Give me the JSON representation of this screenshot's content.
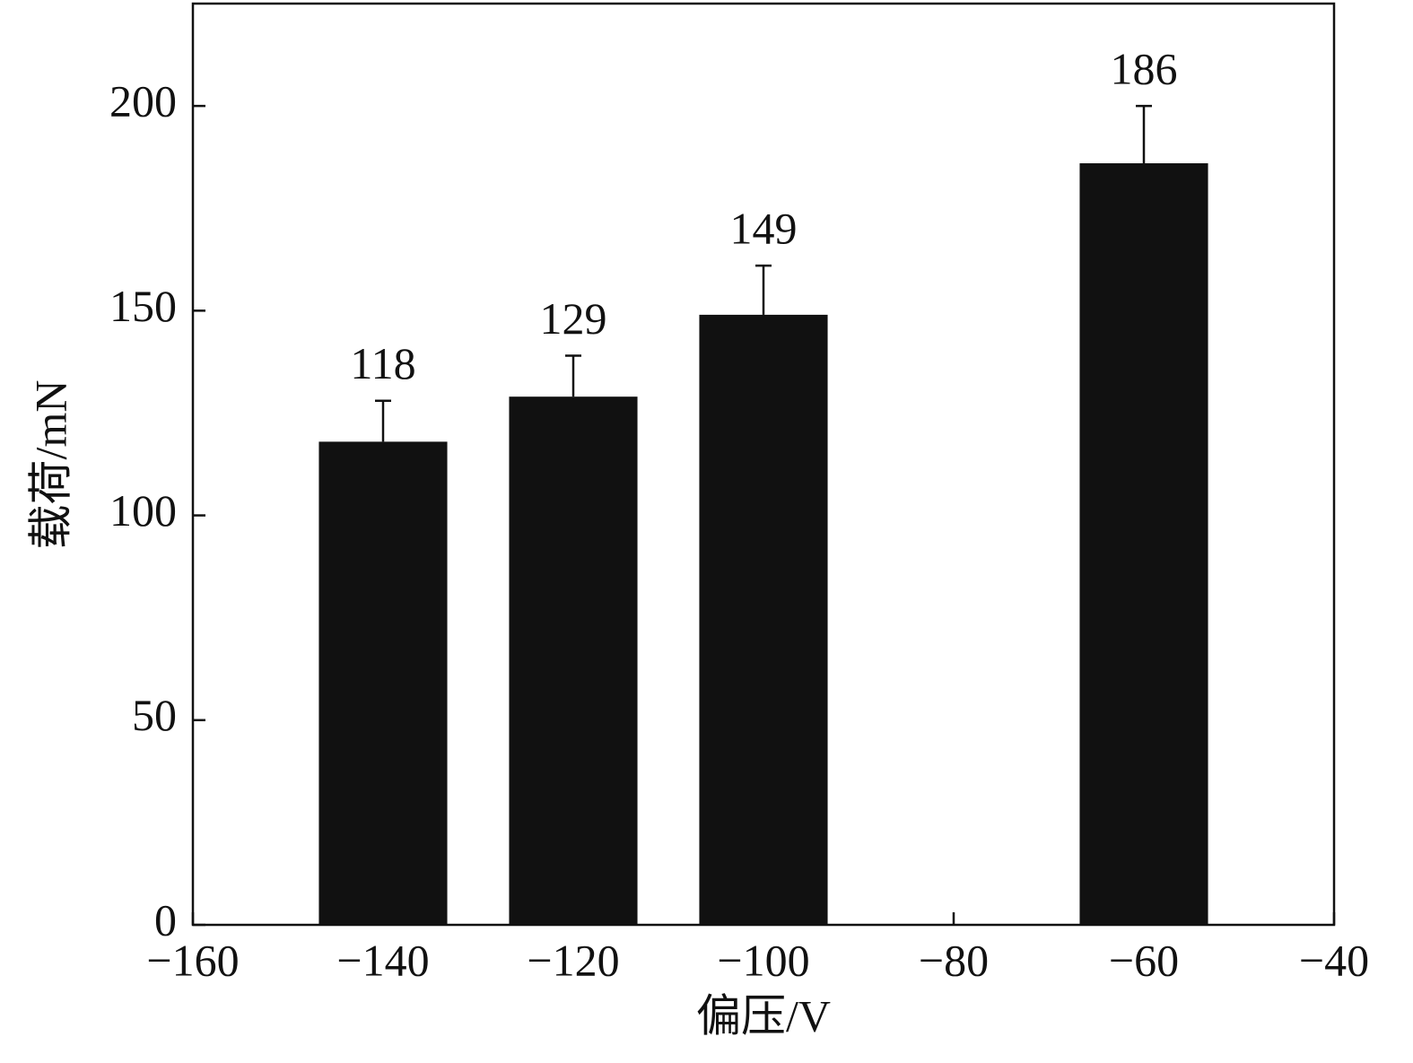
{
  "chart_data": {
    "type": "bar",
    "x": [
      -140,
      -120,
      -100,
      -60
    ],
    "values": [
      118,
      129,
      149,
      186
    ],
    "errors": [
      10,
      10,
      12,
      14
    ],
    "color": "#111111",
    "xlabel": "偏压/V",
    "ylabel": "载荷/mN",
    "xlim": [
      -160,
      -40
    ],
    "xticks": [
      {
        "value": -160,
        "label": "−160"
      },
      {
        "value": -140,
        "label": "−140"
      },
      {
        "value": -120,
        "label": "−120"
      },
      {
        "value": -100,
        "label": "−100"
      },
      {
        "value": -80,
        "label": "−80"
      },
      {
        "value": -60,
        "label": "−60"
      },
      {
        "value": -40,
        "label": "−40"
      }
    ],
    "ylim": [
      0,
      225
    ],
    "yticks": [
      0,
      50,
      100,
      150,
      200
    ],
    "grid": false
  }
}
